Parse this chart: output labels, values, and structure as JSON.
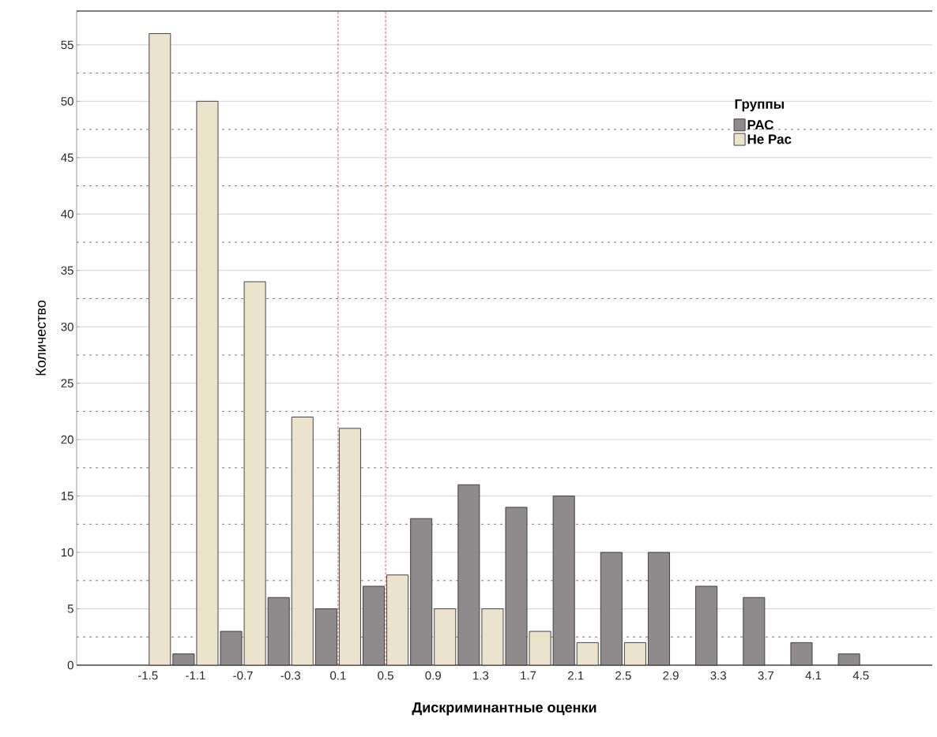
{
  "chart_data": {
    "type": "bar",
    "xlabel": "Дискриминантные оценки",
    "ylabel": "Количество",
    "legend_title": "Группы",
    "x": [
      -1.5,
      -1.1,
      -0.7,
      -0.3,
      0.1,
      0.5,
      0.9,
      1.3,
      1.7,
      2.1,
      2.5,
      2.9,
      3.3,
      3.7,
      4.1,
      4.5
    ],
    "series": [
      {
        "name": "РАС",
        "color": "#8f8a8c",
        "values": [
          null,
          1,
          3,
          6,
          5,
          7,
          13,
          16,
          14,
          15,
          10,
          10,
          7,
          6,
          2,
          1
        ]
      },
      {
        "name": "Не Рас",
        "color": "#ebe3cc",
        "values": [
          56,
          50,
          34,
          22,
          21,
          8,
          5,
          5,
          3,
          2,
          2,
          null,
          null,
          null,
          null,
          null
        ]
      }
    ],
    "xlim": [
      -2.1,
      5.1
    ],
    "xticks": [
      -1.5,
      -1.1,
      -0.7,
      -0.3,
      0.1,
      0.5,
      0.9,
      1.3,
      1.7,
      2.1,
      2.5,
      2.9,
      3.3,
      3.7,
      4.1,
      4.5
    ],
    "ylim": [
      0,
      58
    ],
    "yticks": [
      0,
      5,
      10,
      15,
      20,
      25,
      30,
      35,
      40,
      45,
      50,
      55
    ],
    "ref_lines": [
      {
        "axis": "x",
        "value": 0.1,
        "color": "#d04040",
        "line_style": "dashed"
      },
      {
        "axis": "x",
        "value": 0.5,
        "color": "#d04040",
        "line_style": "dashed"
      }
    ],
    "grid": "y",
    "legend": "top right"
  }
}
